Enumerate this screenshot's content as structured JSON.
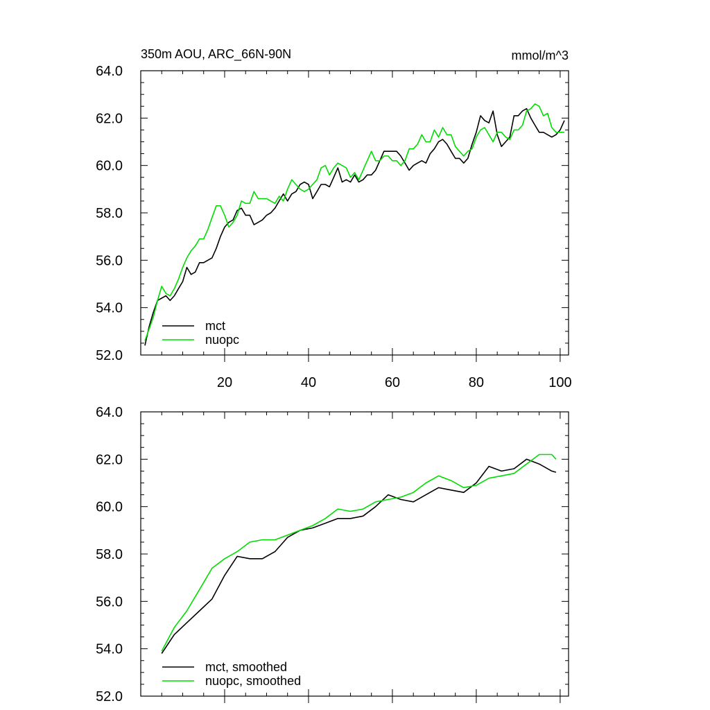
{
  "chart_data": [
    {
      "type": "line",
      "title_left": "350m AOU, ARC_66N-90N",
      "title_right": "mmol/m^3",
      "xlim": [
        0,
        102
      ],
      "ylim": [
        52,
        64
      ],
      "yticks": [
        "52.0",
        "54.0",
        "56.0",
        "58.0",
        "60.0",
        "62.0",
        "64.0"
      ],
      "xticks": [
        "20",
        "40",
        "60",
        "80",
        "100"
      ],
      "legend": [
        "mct",
        "nuopc"
      ],
      "legend_position": "bottom-left",
      "colors": [
        "#000000",
        "#00dd00"
      ],
      "series": [
        {
          "name": "mct",
          "x": [
            1,
            2,
            3,
            4,
            5,
            6,
            7,
            8,
            9,
            10,
            11,
            12,
            13,
            14,
            15,
            16,
            17,
            18,
            19,
            20,
            21,
            22,
            23,
            24,
            25,
            26,
            27,
            28,
            29,
            30,
            31,
            32,
            33,
            34,
            35,
            36,
            37,
            38,
            39,
            40,
            41,
            42,
            43,
            44,
            45,
            46,
            47,
            48,
            49,
            50,
            51,
            52,
            53,
            54,
            55,
            56,
            57,
            58,
            59,
            60,
            61,
            62,
            63,
            64,
            65,
            66,
            67,
            68,
            69,
            70,
            71,
            72,
            73,
            74,
            75,
            76,
            77,
            78,
            79,
            80,
            81,
            82,
            83,
            84,
            85,
            86,
            87,
            88,
            89,
            90,
            91,
            92,
            93,
            94,
            95,
            96,
            97,
            98,
            99,
            100,
            101
          ],
          "values": [
            52.4,
            53.2,
            53.8,
            54.3,
            54.4,
            54.5,
            54.3,
            54.5,
            54.8,
            55.1,
            55.7,
            55.4,
            55.5,
            55.9,
            55.9,
            56.0,
            56.1,
            56.5,
            57.0,
            57.4,
            57.6,
            57.7,
            58.1,
            58.2,
            57.9,
            57.9,
            57.5,
            57.6,
            57.7,
            57.9,
            58.0,
            58.2,
            58.5,
            58.8,
            58.5,
            58.8,
            58.9,
            59.2,
            59.3,
            59.2,
            58.6,
            58.9,
            59.2,
            59.2,
            59.1,
            59.5,
            59.9,
            59.3,
            59.4,
            59.3,
            59.6,
            59.3,
            59.4,
            59.6,
            59.6,
            59.8,
            60.2,
            60.6,
            60.6,
            60.6,
            60.6,
            60.4,
            60.1,
            59.8,
            60.0,
            60.1,
            60.2,
            60.1,
            60.5,
            60.7,
            61.0,
            61.1,
            60.9,
            60.6,
            60.3,
            60.3,
            60.1,
            60.3,
            60.9,
            61.4,
            62.1,
            61.9,
            61.8,
            62.3,
            61.3,
            60.8,
            61.0,
            61.2,
            62.1,
            62.1,
            62.3,
            62.4,
            62.0,
            61.7,
            61.4,
            61.4,
            61.3,
            61.2,
            61.3,
            61.5,
            61.9
          ]
        },
        {
          "name": "nuopc",
          "x": [
            1,
            2,
            3,
            4,
            5,
            6,
            7,
            8,
            9,
            10,
            11,
            12,
            13,
            14,
            15,
            16,
            17,
            18,
            19,
            20,
            21,
            22,
            23,
            24,
            25,
            26,
            27,
            28,
            29,
            30,
            31,
            32,
            33,
            34,
            35,
            36,
            37,
            38,
            39,
            40,
            41,
            42,
            43,
            44,
            45,
            46,
            47,
            48,
            49,
            50,
            51,
            52,
            53,
            54,
            55,
            56,
            57,
            58,
            59,
            60,
            61,
            62,
            63,
            64,
            65,
            66,
            67,
            68,
            69,
            70,
            71,
            72,
            73,
            74,
            75,
            76,
            77,
            78,
            79,
            80,
            81,
            82,
            83,
            84,
            85,
            86,
            87,
            88,
            89,
            90,
            91,
            92,
            93,
            94,
            95,
            96,
            97,
            98,
            99,
            100,
            101
          ],
          "values": [
            52.6,
            53.1,
            53.6,
            54.3,
            54.9,
            54.6,
            54.5,
            54.8,
            55.2,
            55.7,
            56.1,
            56.4,
            56.6,
            56.9,
            56.9,
            57.3,
            57.8,
            58.3,
            58.3,
            57.9,
            57.4,
            57.6,
            57.9,
            58.5,
            58.4,
            58.4,
            58.9,
            58.6,
            58.6,
            58.6,
            58.5,
            58.4,
            58.7,
            58.5,
            59.0,
            59.4,
            59.2,
            59.0,
            58.9,
            59.0,
            59.2,
            59.4,
            59.9,
            60.0,
            59.6,
            59.9,
            60.1,
            60.0,
            59.9,
            59.5,
            59.7,
            59.4,
            59.8,
            60.2,
            60.6,
            60.2,
            60.2,
            60.4,
            60.4,
            60.2,
            60.2,
            60.0,
            60.2,
            60.7,
            60.7,
            60.9,
            61.3,
            61.0,
            61.0,
            61.5,
            61.2,
            61.6,
            61.3,
            61.3,
            60.8,
            60.6,
            60.4,
            60.6,
            60.7,
            61.2,
            61.5,
            61.6,
            61.3,
            61.0,
            61.4,
            61.4,
            61.2,
            61.1,
            61.5,
            61.5,
            61.7,
            62.3,
            62.4,
            62.6,
            62.5,
            62.1,
            62.2,
            61.6,
            61.4,
            61.4,
            61.4
          ]
        }
      ]
    },
    {
      "type": "line",
      "xlim": [
        0,
        102
      ],
      "ylim": [
        52,
        64
      ],
      "yticks": [
        "52.0",
        "54.0",
        "56.0",
        "58.0",
        "60.0",
        "62.0",
        "64.0"
      ],
      "legend": [
        "mct, smoothed",
        "nuopc, smoothed"
      ],
      "legend_position": "bottom-left",
      "colors": [
        "#000000",
        "#00dd00"
      ],
      "series": [
        {
          "name": "mct, smoothed",
          "x": [
            5,
            8,
            11,
            14,
            17,
            20,
            23,
            26,
            29,
            32,
            35,
            38,
            41,
            44,
            47,
            50,
            53,
            56,
            59,
            62,
            65,
            68,
            71,
            74,
            77,
            80,
            83,
            86,
            89,
            92,
            95,
            98
          ],
          "values": [
            53.8,
            54.6,
            55.1,
            55.6,
            56.1,
            57.1,
            57.9,
            57.8,
            57.8,
            58.1,
            58.7,
            59.0,
            59.1,
            59.3,
            59.5,
            59.5,
            59.6,
            60.0,
            60.5,
            60.3,
            60.2,
            60.5,
            60.8,
            60.7,
            60.6,
            61.0,
            61.7,
            61.5,
            61.6,
            62.0,
            61.8,
            61.5
          ],
          "x_extra": [
            99
          ],
          "values_extra": [
            61.45
          ]
        },
        {
          "name": "nuopc, smoothed",
          "x": [
            5,
            8,
            11,
            14,
            17,
            20,
            23,
            26,
            29,
            32,
            35,
            38,
            41,
            44,
            47,
            50,
            53,
            56,
            59,
            62,
            65,
            68,
            71,
            74,
            77,
            80,
            83,
            86,
            89,
            92,
            95,
            98
          ],
          "values": [
            53.9,
            54.9,
            55.6,
            56.5,
            57.4,
            57.8,
            58.1,
            58.5,
            58.6,
            58.6,
            58.8,
            59.0,
            59.2,
            59.5,
            59.9,
            59.8,
            59.9,
            60.2,
            60.3,
            60.4,
            60.6,
            61.0,
            61.3,
            61.1,
            60.8,
            60.9,
            61.2,
            61.3,
            61.4,
            61.8,
            62.2,
            62.2
          ],
          "x_extra": [
            99
          ],
          "values_extra": [
            62.0
          ]
        }
      ]
    }
  ]
}
